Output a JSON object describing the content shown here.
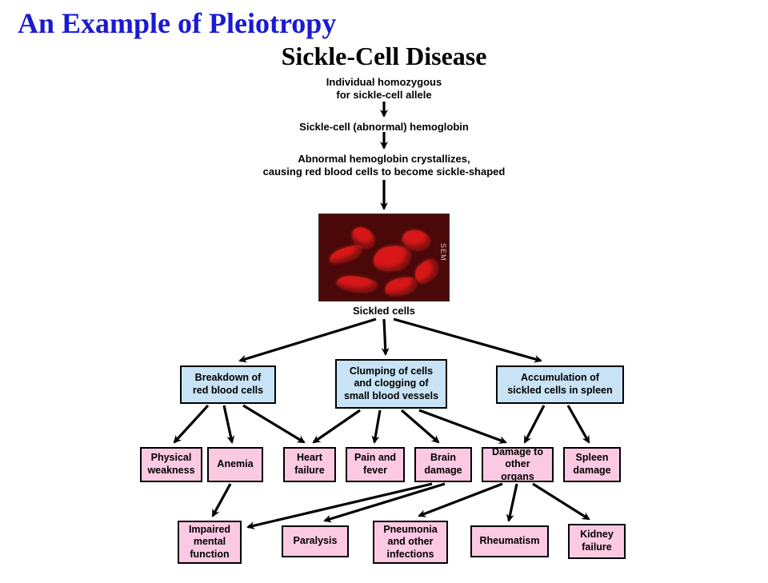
{
  "title": {
    "text": "An Example of Pleiotropy",
    "color": "#1a1ad4"
  },
  "subtitle": {
    "text": "Sickle-Cell Disease",
    "color": "#000000"
  },
  "colors": {
    "blue_box": "#c7e3f5",
    "pink_box": "#fbc9e2",
    "arrow": "#000000",
    "box_border": "#000000",
    "cell_bg": "#4a0808",
    "cell_red": "#d81818"
  },
  "sem_label": "SEM",
  "top_chain": {
    "n1": "Individual homozygous\nfor sickle-cell allele",
    "n2": "Sickle-cell (abnormal) hemoglobin",
    "n3": "Abnormal hemoglobin crystallizes,\ncausing red blood cells to become sickle-shaped",
    "n4": "Sickled cells"
  },
  "blue_boxes": {
    "b1": "Breakdown of\nred blood cells",
    "b2": "Clumping of cells\nand clogging of\nsmall blood vessels",
    "b3": "Accumulation of\nsickled cells in spleen"
  },
  "pink_row1": {
    "p1": "Physical\nweakness",
    "p2": "Anemia",
    "p3": "Heart\nfailure",
    "p4": "Pain and\nfever",
    "p5": "Brain\ndamage",
    "p6": "Damage to\nother organs",
    "p7": "Spleen\ndamage"
  },
  "pink_row2": {
    "q1": "Impaired\nmental\nfunction",
    "q2": "Paralysis",
    "q3": "Pneumonia\nand other\ninfections",
    "q4": "Rheumatism",
    "q5": "Kidney\nfailure"
  }
}
